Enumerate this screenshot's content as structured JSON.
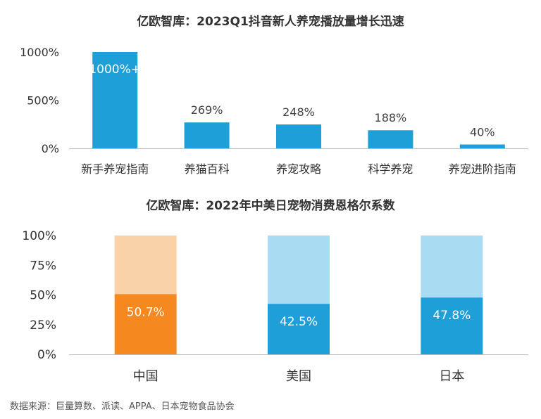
{
  "source_note": "数据来源：巨量算数、派读、APPA、日本宠物食品协会",
  "colors": {
    "bar_blue": "#1f9fd8",
    "bar_blue_light": "#a7dcf3",
    "bar_orange": "#f5891f",
    "bar_orange_light": "#fad2a8",
    "axis": "#bfbfbf"
  },
  "chart_data": [
    {
      "type": "bar",
      "title": "亿欧智库：2023Q1抖音新人养宠播放量增长迅速",
      "categories": [
        "新手养宠指南",
        "养猫百科",
        "养宠攻略",
        "科学养宠",
        "养宠进阶指南"
      ],
      "values": [
        1000,
        269,
        248,
        188,
        40
      ],
      "data_labels": [
        "1000%+",
        "269%",
        "248%",
        "188%",
        "40%"
      ],
      "y_ticks": [
        "1000%",
        "500%",
        "0%"
      ],
      "y_tick_values": [
        1000,
        500,
        0
      ],
      "ylim": [
        0,
        1000
      ],
      "xlabel": "",
      "ylabel": "",
      "grid": false
    },
    {
      "type": "bar",
      "stacked": true,
      "title": "亿欧智库：2022年中美日宠物消费恩格尔系数",
      "categories": [
        "中国",
        "美国",
        "日本"
      ],
      "series": [
        {
          "values": [
            50.7,
            42.5,
            47.8
          ],
          "labels": [
            "50.7%",
            "42.5%",
            "47.8%"
          ]
        },
        {
          "values": [
            49.3,
            57.5,
            52.2
          ]
        }
      ],
      "y_ticks": [
        "100%",
        "75%",
        "50%",
        "25%",
        "0%"
      ],
      "y_tick_values": [
        100,
        75,
        50,
        25,
        0
      ],
      "ylim": [
        0,
        100
      ],
      "xlabel": "",
      "ylabel": "",
      "grid": false
    }
  ]
}
